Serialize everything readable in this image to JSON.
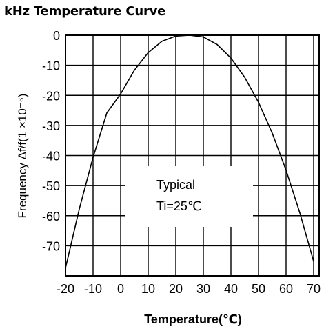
{
  "title": "kHz Temperature Curve",
  "chart_data": {
    "type": "line",
    "title": "kHz Temperature Curve",
    "xlabel": "Temperature(℃)",
    "ylabel": "Frequency Δf/f(1 ×10⁻⁶)",
    "xlim": [
      -20,
      72
    ],
    "ylim": [
      -80,
      0
    ],
    "x_ticks": [
      -20,
      -10,
      0,
      10,
      20,
      30,
      40,
      50,
      60,
      70
    ],
    "x_tick_labels": [
      "-20",
      "-10",
      "0",
      "10",
      "20",
      "30",
      "40",
      "50",
      "60",
      "70"
    ],
    "y_ticks": [
      0,
      -10,
      -20,
      -30,
      -40,
      -50,
      -60,
      -70
    ],
    "y_tick_labels": [
      "0",
      "-10",
      "-20",
      "-30",
      "-40",
      "-50",
      "-60",
      "-70"
    ],
    "grid": true,
    "legend": "none",
    "annotation": [
      "Typical",
      "Ti=25℃"
    ],
    "series": [
      {
        "x": [
          -20,
          -15,
          -10,
          -5,
          0,
          5,
          10,
          15,
          20,
          25,
          30,
          35,
          40,
          45,
          50,
          55,
          60,
          65,
          70
        ],
        "y": [
          -77.4,
          -57.8,
          -40.6,
          -25.8,
          -19.5,
          -11.6,
          -5.8,
          -2.0,
          -0.3,
          0,
          -0.6,
          -3.1,
          -7.6,
          -14.0,
          -22.3,
          -32.6,
          -44.9,
          -59.1,
          -75.2
        ]
      }
    ],
    "colors": {
      "line": "#000000",
      "grid": "#000000",
      "background": "#ffffff"
    }
  }
}
